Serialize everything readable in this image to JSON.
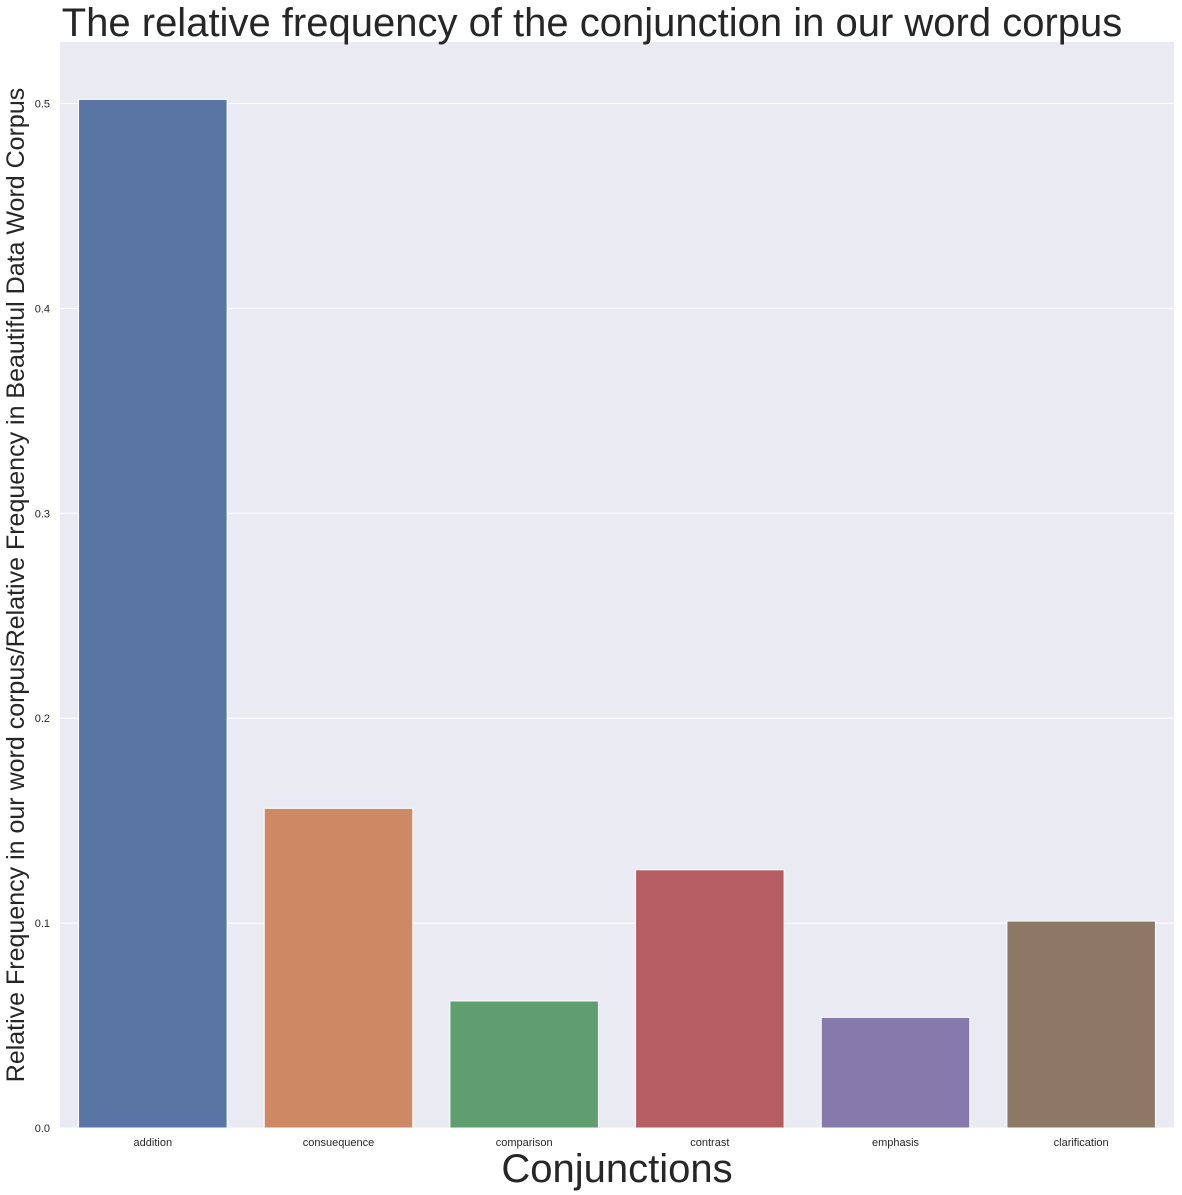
{
  "chart_data": {
    "type": "bar",
    "title": "The relative frequency of the conjunction in our word corpus",
    "xlabel": "Conjunctions",
    "ylabel": "Relative Frequency in our word corpus/Relative Frequency in Beautiful Data Word Corpus",
    "categories": [
      "addition",
      "consuequence",
      "comparison",
      "contrast",
      "emphasis",
      "clarification"
    ],
    "values": [
      0.502,
      0.156,
      0.062,
      0.126,
      0.054,
      0.101
    ],
    "colors": [
      "#5875a4",
      "#cc8963",
      "#5f9e6e",
      "#b55d60",
      "#857aab",
      "#8d7866"
    ],
    "ylim": [
      0,
      0.53
    ],
    "yticks": [
      0.0,
      0.1,
      0.2,
      0.3,
      0.4,
      0.5
    ],
    "ytick_labels": [
      "0.0",
      "0.1",
      "0.2",
      "0.3",
      "0.4",
      "0.5"
    ],
    "grid": true,
    "background": "#eaeaf2"
  }
}
